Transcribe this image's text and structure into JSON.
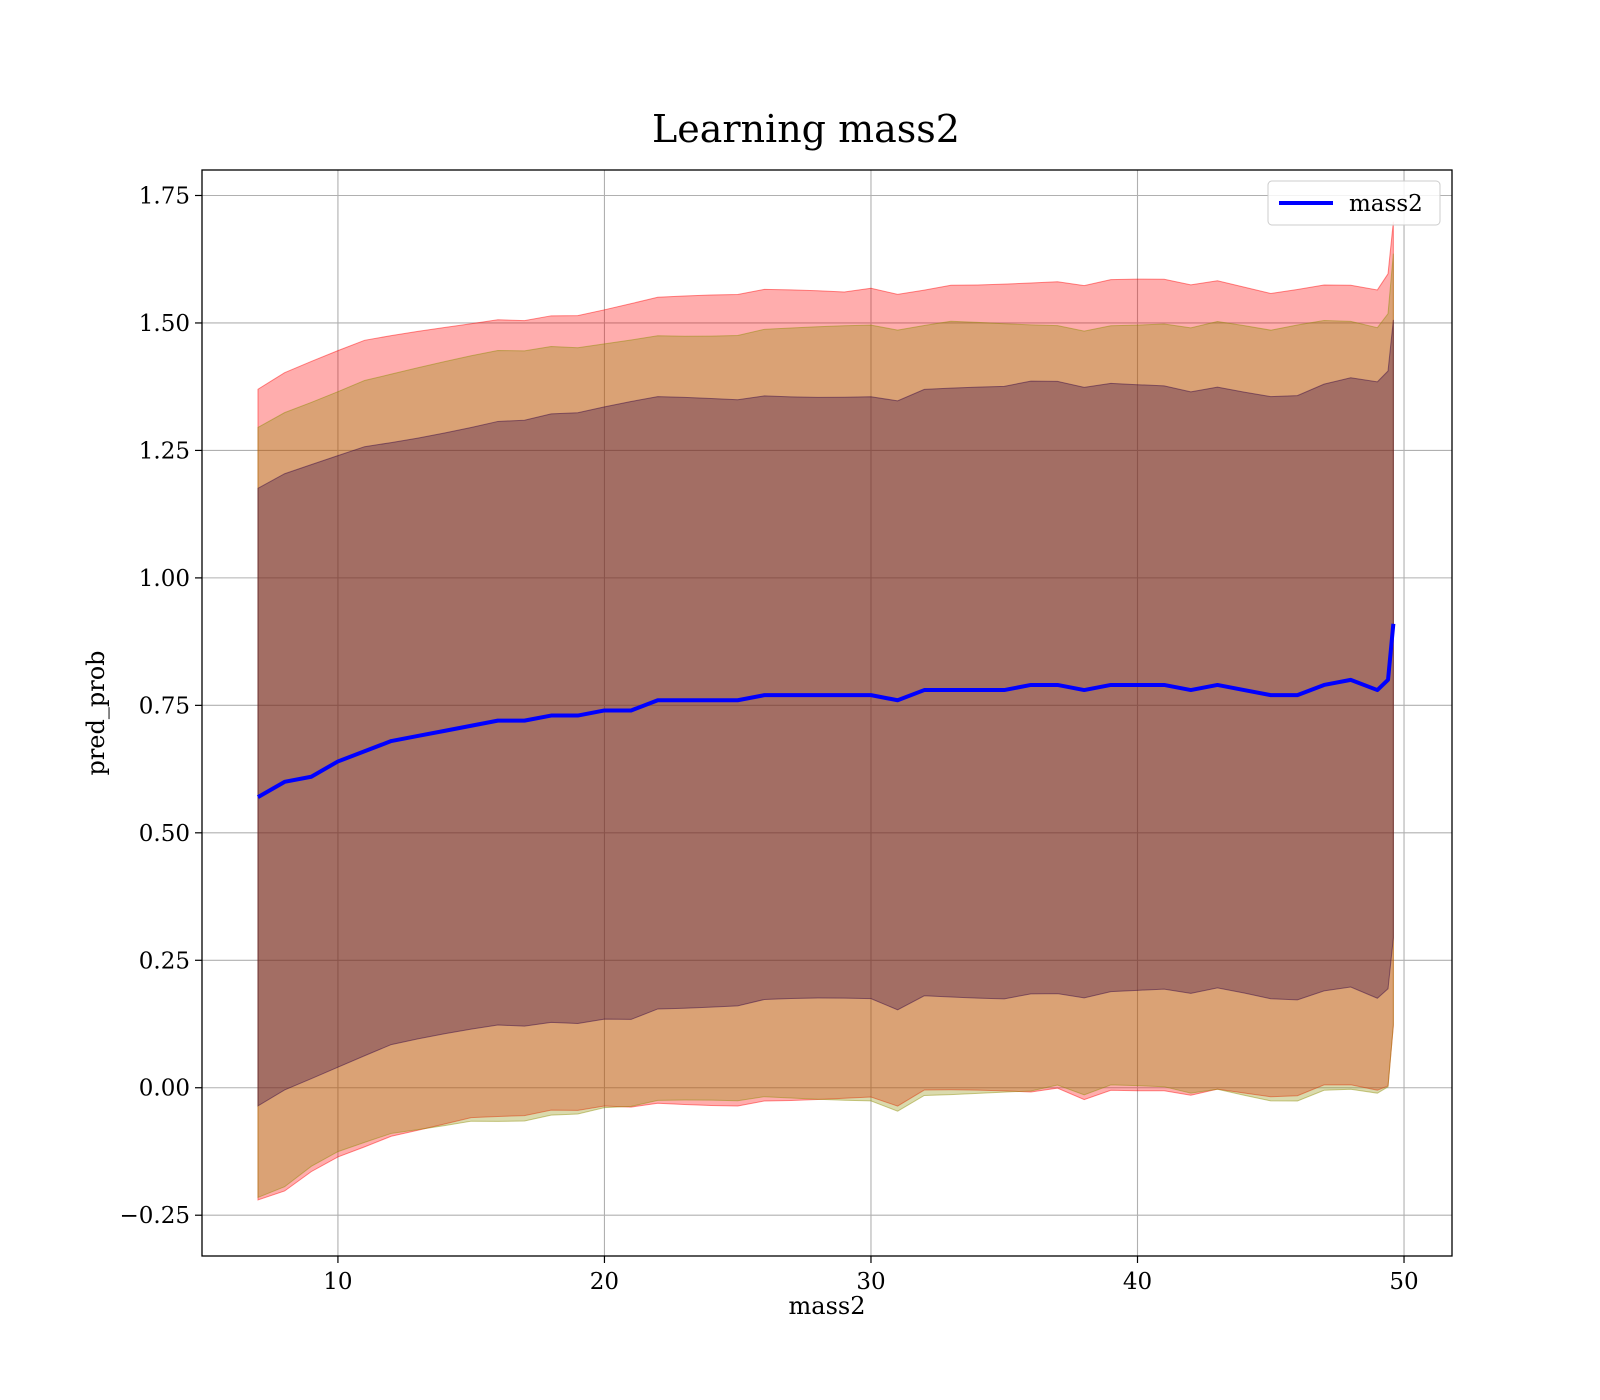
{
  "chart_data": {
    "type": "area",
    "title": "Learning mass2",
    "xlabel": "mass2",
    "ylabel": "pred_prob",
    "xlim": [
      4.9,
      51.8
    ],
    "ylim": [
      -0.33,
      1.8
    ],
    "x_ticks": [
      10,
      20,
      30,
      40,
      50
    ],
    "x_tick_labels": [
      "10",
      "20",
      "30",
      "40",
      "50"
    ],
    "y_ticks": [
      -0.25,
      0,
      0.25,
      0.5,
      0.75,
      1.0,
      1.25,
      1.5,
      1.75
    ],
    "y_tick_labels": [
      "−0.25",
      "0.00",
      "0.25",
      "0.50",
      "0.75",
      "1.00",
      "1.25",
      "1.50",
      "1.75"
    ],
    "grid": true,
    "legend": {
      "placement": "top-right",
      "entries": [
        "mass2"
      ]
    },
    "x": [
      7,
      8,
      9,
      10,
      11,
      12,
      13,
      14,
      15,
      16,
      17,
      18,
      19,
      20,
      21,
      22,
      23,
      24,
      25,
      26,
      27,
      28,
      29,
      30,
      31,
      32,
      33,
      34,
      35,
      36,
      37,
      38,
      39,
      40,
      41,
      42,
      43,
      44,
      45,
      46,
      47,
      48,
      49,
      49.4,
      49.6
    ],
    "series": [
      {
        "name": "mass2",
        "color": "#0000ff",
        "values": [
          0.57,
          0.6,
          0.61,
          0.64,
          0.66,
          0.68,
          0.69,
          0.7,
          0.71,
          0.72,
          0.72,
          0.73,
          0.73,
          0.74,
          0.74,
          0.76,
          0.76,
          0.76,
          0.76,
          0.77,
          0.77,
          0.77,
          0.77,
          0.77,
          0.76,
          0.78,
          0.78,
          0.78,
          0.78,
          0.79,
          0.79,
          0.78,
          0.79,
          0.79,
          0.79,
          0.78,
          0.79,
          0.78,
          0.77,
          0.77,
          0.79,
          0.8,
          0.78,
          0.8,
          0.91
        ]
      }
    ],
    "bands": [
      {
        "color": "#ff0000",
        "upper": [
          1.37,
          1.4,
          1.42,
          1.44,
          1.46,
          1.47,
          1.48,
          1.49,
          1.5,
          1.51,
          1.51,
          1.52,
          1.52,
          1.53,
          1.54,
          1.55,
          1.55,
          1.55,
          1.55,
          1.56,
          1.56,
          1.56,
          1.56,
          1.57,
          1.56,
          1.57,
          1.58,
          1.58,
          1.58,
          1.58,
          1.58,
          1.57,
          1.58,
          1.58,
          1.58,
          1.57,
          1.58,
          1.57,
          1.56,
          1.57,
          1.58,
          1.58,
          1.57,
          1.6,
          1.7
        ],
        "lower": [
          -0.22,
          -0.2,
          -0.16,
          -0.13,
          -0.11,
          -0.09,
          -0.08,
          -0.07,
          -0.06,
          -0.06,
          -0.06,
          -0.05,
          -0.05,
          -0.04,
          -0.04,
          -0.03,
          -0.03,
          -0.03,
          -0.03,
          -0.02,
          -0.02,
          -0.02,
          -0.02,
          -0.02,
          -0.04,
          -0.01,
          -0.01,
          -0.01,
          -0.01,
          -0.01,
          0.0,
          -0.02,
          0.0,
          0.0,
          0.0,
          -0.01,
          0.0,
          -0.01,
          -0.02,
          -0.02,
          0.0,
          0.0,
          -0.01,
          0.0,
          0.12
        ]
      },
      {
        "color": "#8b8b00",
        "upper": [
          1.3,
          1.33,
          1.35,
          1.37,
          1.39,
          1.4,
          1.41,
          1.42,
          1.43,
          1.44,
          1.44,
          1.45,
          1.45,
          1.46,
          1.47,
          1.48,
          1.48,
          1.48,
          1.48,
          1.49,
          1.49,
          1.49,
          1.49,
          1.49,
          1.48,
          1.49,
          1.5,
          1.5,
          1.5,
          1.5,
          1.5,
          1.49,
          1.5,
          1.5,
          1.5,
          1.49,
          1.5,
          1.49,
          1.48,
          1.49,
          1.5,
          1.5,
          1.49,
          1.52,
          1.64
        ]
      },
      {
        "color": "#2e0040",
        "upper": [
          1.17,
          1.2,
          1.22,
          1.24,
          1.26,
          1.27,
          1.28,
          1.29,
          1.3,
          1.31,
          1.31,
          1.32,
          1.32,
          1.33,
          1.34,
          1.35,
          1.35,
          1.35,
          1.35,
          1.36,
          1.36,
          1.36,
          1.36,
          1.36,
          1.35,
          1.37,
          1.37,
          1.37,
          1.37,
          1.38,
          1.38,
          1.37,
          1.38,
          1.38,
          1.38,
          1.37,
          1.38,
          1.37,
          1.36,
          1.36,
          1.38,
          1.39,
          1.38,
          1.4,
          1.5
        ],
        "lower": [
          -0.03,
          0.0,
          0.02,
          0.04,
          0.06,
          0.08,
          0.09,
          0.1,
          0.11,
          0.12,
          0.12,
          0.13,
          0.13,
          0.14,
          0.14,
          0.16,
          0.16,
          0.16,
          0.16,
          0.17,
          0.17,
          0.17,
          0.17,
          0.17,
          0.15,
          0.18,
          0.18,
          0.18,
          0.18,
          0.19,
          0.19,
          0.18,
          0.19,
          0.19,
          0.19,
          0.18,
          0.19,
          0.18,
          0.17,
          0.17,
          0.19,
          0.2,
          0.18,
          0.2,
          0.3
        ]
      }
    ]
  }
}
